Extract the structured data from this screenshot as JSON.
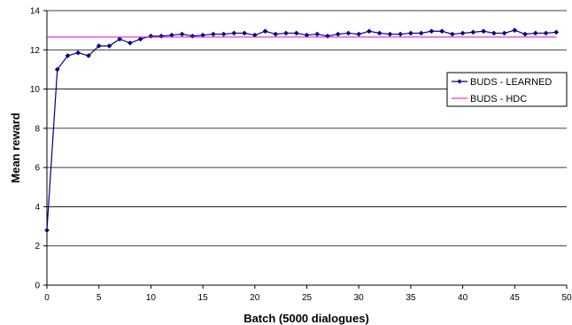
{
  "chart_data": {
    "type": "line",
    "title": "",
    "xlabel": "Batch (5000 dialogues)",
    "ylabel": "Mean reward",
    "xlim": [
      0,
      50
    ],
    "ylim": [
      0,
      14
    ],
    "x_ticks": [
      0,
      5,
      10,
      15,
      20,
      25,
      30,
      35,
      40,
      45,
      50
    ],
    "y_ticks": [
      0,
      2,
      4,
      6,
      8,
      10,
      12,
      14
    ],
    "grid": "horizontal",
    "legend_position": "right",
    "series": [
      {
        "name": "BUDS - LEARNED",
        "color": "#000080",
        "marker": "diamond",
        "x": [
          0,
          1,
          2,
          3,
          4,
          5,
          6,
          7,
          8,
          9,
          10,
          11,
          12,
          13,
          14,
          15,
          16,
          17,
          18,
          19,
          20,
          21,
          22,
          23,
          24,
          25,
          26,
          27,
          28,
          29,
          30,
          31,
          32,
          33,
          34,
          35,
          36,
          37,
          38,
          39,
          40,
          41,
          42,
          43,
          44,
          45,
          46,
          47,
          48,
          49
        ],
        "y": [
          2.8,
          11.0,
          11.7,
          11.85,
          11.7,
          12.2,
          12.2,
          12.55,
          12.35,
          12.55,
          12.7,
          12.7,
          12.75,
          12.8,
          12.7,
          12.75,
          12.8,
          12.8,
          12.85,
          12.85,
          12.75,
          12.95,
          12.8,
          12.85,
          12.85,
          12.75,
          12.8,
          12.7,
          12.8,
          12.85,
          12.8,
          12.95,
          12.85,
          12.8,
          12.8,
          12.85,
          12.85,
          12.95,
          12.95,
          12.8,
          12.85,
          12.9,
          12.95,
          12.85,
          12.85,
          13.0,
          12.8,
          12.85,
          12.85,
          12.9
        ]
      },
      {
        "name": "BUDS - HDC",
        "color": "#e000e0",
        "marker": "none",
        "x": [
          0,
          49
        ],
        "y": [
          12.65,
          12.65
        ]
      }
    ]
  }
}
